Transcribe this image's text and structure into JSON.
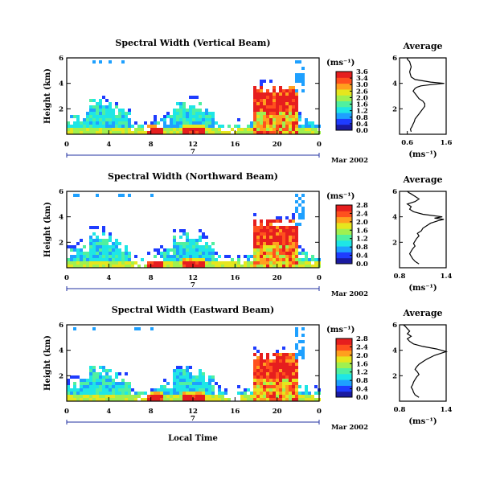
{
  "xlabel": "Local Time",
  "colorbar_unit": "(ms⁻¹)",
  "colors": {
    "colormap": [
      "#1a1aa0",
      "#1e3cff",
      "#1ea0ff",
      "#1ee6e6",
      "#50f0a0",
      "#a0f050",
      "#e6e61e",
      "#ffa01e",
      "#ff501e",
      "#e61e1e"
    ],
    "background": "#ffffff",
    "date_bracket": "#2030a0"
  },
  "chart_data": [
    {
      "type": "heatmap",
      "title": "Spectral Width (Vertical Beam)",
      "ylabel": "Height (km)",
      "x_ticks": [
        "0",
        "4",
        "8",
        "12",
        "16",
        "20",
        "0"
      ],
      "xlim": [
        0,
        24
      ],
      "y_ticks": [
        "6",
        "4",
        "2"
      ],
      "ylim": [
        0,
        6
      ],
      "date_day": "7",
      "date_label": "Mar 2002",
      "colorbar_ticks": [
        "3.6",
        "3.4",
        "3.0",
        "2.6",
        "2.0",
        "1.6",
        "1.2",
        "0.8",
        "0.4",
        "0.0"
      ],
      "colorbar_range": [
        0.0,
        3.6
      ],
      "legend": "right",
      "profile": {
        "title": "Average",
        "xlabel": "(ms⁻¹)",
        "x_ticks": [
          "0.6",
          "1.6"
        ],
        "xlim": [
          0.4,
          1.6
        ],
        "y_ticks": [
          "6",
          "4",
          "2"
        ],
        "ylim": [
          0,
          6
        ],
        "width": [
          0.7,
          0.68,
          0.72,
          0.75,
          0.78,
          0.8,
          0.85,
          0.9,
          0.95,
          1.0,
          1.05,
          1.05,
          1.0,
          0.9,
          0.85,
          0.8,
          0.75,
          0.8,
          0.85,
          0.95,
          1.2,
          1.55,
          1.2,
          0.8,
          0.7,
          0.68,
          0.66,
          0.68,
          0.7,
          0.68,
          0.66,
          0.6,
          0.6
        ],
        "height": [
          0.2,
          0.4,
          0.6,
          0.8,
          1.0,
          1.2,
          1.4,
          1.6,
          1.8,
          2.0,
          2.2,
          2.4,
          2.6,
          2.8,
          3.0,
          3.2,
          3.4,
          3.6,
          3.7,
          3.8,
          3.9,
          4.0,
          4.1,
          4.3,
          4.5,
          4.7,
          4.9,
          5.1,
          5.3,
          5.5,
          5.7,
          5.9,
          6.0
        ]
      }
    },
    {
      "type": "heatmap",
      "title": "Spectral Width (Northward Beam)",
      "ylabel": "Height (km)",
      "x_ticks": [
        "0",
        "4",
        "8",
        "12",
        "16",
        "20",
        "0"
      ],
      "xlim": [
        0,
        24
      ],
      "y_ticks": [
        "6",
        "4",
        "2"
      ],
      "ylim": [
        0,
        6
      ],
      "date_day": "7",
      "date_label": "Mar 2002",
      "colorbar_ticks": [
        "2.8",
        "2.4",
        "2.0",
        "1.6",
        "1.2",
        "0.8",
        "0.4",
        "0.0"
      ],
      "colorbar_range": [
        0.0,
        2.8
      ],
      "legend": "right",
      "profile": {
        "title": "Average",
        "xlabel": "(ms⁻¹)",
        "x_ticks": [
          "0.8",
          "1.4"
        ],
        "xlim": [
          0.8,
          1.4
        ],
        "y_ticks": [
          "6",
          "4",
          "2"
        ],
        "ylim": [
          0,
          6
        ],
        "width": [
          1.05,
          1.0,
          0.97,
          0.95,
          0.93,
          0.95,
          0.97,
          1.0,
          0.98,
          1.0,
          1.02,
          1.05,
          1.03,
          1.08,
          1.1,
          1.15,
          1.2,
          1.3,
          1.37,
          1.25,
          1.35,
          1.1,
          0.98,
          0.93,
          0.95,
          0.9,
          1.0,
          1.05,
          1.0,
          0.95,
          0.92,
          0.9
        ],
        "height": [
          0.3,
          0.5,
          0.7,
          0.9,
          1.1,
          1.3,
          1.5,
          1.7,
          1.9,
          2.1,
          2.3,
          2.5,
          2.7,
          2.9,
          3.1,
          3.3,
          3.5,
          3.7,
          3.8,
          3.9,
          4.0,
          4.2,
          4.4,
          4.6,
          4.8,
          5.0,
          5.2,
          5.4,
          5.6,
          5.8,
          5.9,
          6.0
        ]
      }
    },
    {
      "type": "heatmap",
      "title": "Spectral Width (Eastward Beam)",
      "ylabel": "Height (km)",
      "x_ticks": [
        "0",
        "4",
        "8",
        "12",
        "16",
        "20",
        "0"
      ],
      "xlim": [
        0,
        24
      ],
      "y_ticks": [
        "6",
        "4",
        "2"
      ],
      "ylim": [
        0,
        6
      ],
      "date_day": "7",
      "date_label": "Mar 2002",
      "colorbar_ticks": [
        "2.8",
        "2.4",
        "2.0",
        "1.6",
        "1.2",
        "0.8",
        "0.4",
        "0.0"
      ],
      "colorbar_range": [
        0.0,
        2.8
      ],
      "legend": "right",
      "profile": {
        "title": "Average",
        "xlabel": "(ms⁻¹)",
        "x_ticks": [
          "0.8",
          "1.4"
        ],
        "xlim": [
          0.8,
          1.4
        ],
        "y_ticks": [
          "6",
          "4",
          "2"
        ],
        "ylim": [
          0,
          6
        ],
        "width": [
          1.05,
          1.0,
          0.98,
          0.97,
          0.95,
          0.97,
          0.98,
          1.0,
          1.02,
          1.05,
          1.03,
          1.0,
          1.02,
          1.05,
          1.1,
          1.15,
          1.25,
          1.4,
          1.28,
          1.1,
          0.98,
          0.93,
          0.9,
          0.95,
          0.9,
          0.93,
          0.9,
          0.87,
          0.85
        ],
        "height": [
          0.3,
          0.5,
          0.7,
          0.9,
          1.1,
          1.3,
          1.5,
          1.7,
          1.9,
          2.1,
          2.3,
          2.5,
          2.7,
          2.9,
          3.1,
          3.3,
          3.6,
          3.9,
          4.1,
          4.3,
          4.5,
          4.7,
          4.9,
          5.1,
          5.3,
          5.5,
          5.7,
          5.9,
          6.0
        ]
      }
    }
  ]
}
